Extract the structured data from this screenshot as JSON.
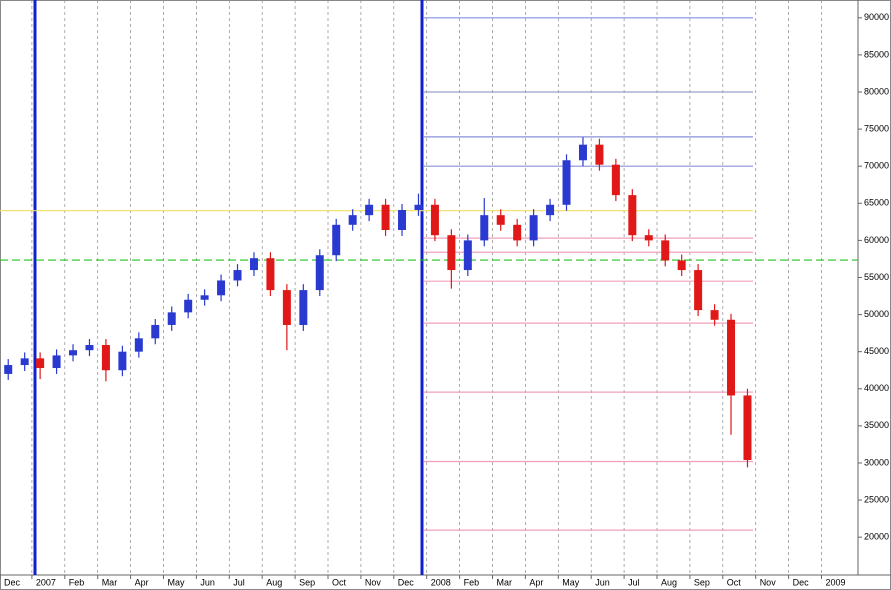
{
  "chart_data": {
    "type": "candlestick",
    "x_labels": [
      "Dec",
      "2007",
      "Feb",
      "Mar",
      "Apr",
      "May",
      "Jun",
      "Jul",
      "Aug",
      "Sep",
      "Oct",
      "Nov",
      "Dec",
      "2008",
      "Feb",
      "Mar",
      "Apr",
      "May",
      "Jun",
      "Jul",
      "Aug",
      "Sep",
      "Oct",
      "Nov",
      "Dec",
      "2009"
    ],
    "open": [
      42000,
      43200,
      44100,
      42800,
      44500,
      45200,
      45900,
      42500,
      45000,
      46800,
      48600,
      50300,
      52000,
      52600,
      54600,
      56000,
      57600,
      53300,
      48600,
      53300,
      58000,
      62100,
      63400,
      64800,
      61400,
      64100,
      64800,
      60700,
      56000,
      60000,
      63400,
      62100,
      60000,
      63400,
      64800,
      70800,
      72900,
      70200,
      66100,
      60700,
      60000,
      57300,
      56000,
      50600,
      49300,
      39100
    ],
    "high": [
      44000,
      44900,
      44900,
      45300,
      46000,
      46700,
      46700,
      45800,
      47600,
      49400,
      51100,
      52800,
      53400,
      55400,
      56800,
      58400,
      58400,
      54100,
      54100,
      58800,
      62900,
      64200,
      65600,
      65600,
      64900,
      66300,
      65600,
      61500,
      60800,
      65700,
      64200,
      62900,
      64200,
      65600,
      71600,
      73900,
      73700,
      71000,
      66900,
      61500,
      60800,
      58100,
      56800,
      51400,
      50100,
      40000
    ],
    "low": [
      41200,
      42400,
      41300,
      42000,
      43700,
      44400,
      41000,
      41700,
      44200,
      46000,
      47800,
      49500,
      51200,
      51800,
      53800,
      55200,
      52500,
      45200,
      47800,
      52500,
      57200,
      61300,
      62600,
      60600,
      60600,
      63300,
      59900,
      53500,
      55200,
      59200,
      61300,
      59200,
      59200,
      62600,
      64000,
      70000,
      69400,
      65300,
      59900,
      59200,
      56500,
      55200,
      49800,
      48500,
      33800,
      29400
    ],
    "close": [
      43200,
      44100,
      42800,
      44500,
      45200,
      45900,
      42500,
      45000,
      46800,
      48600,
      50300,
      52000,
      52600,
      54600,
      56000,
      57600,
      53300,
      48600,
      53300,
      58000,
      62100,
      63400,
      64800,
      61400,
      64100,
      64800,
      60700,
      56000,
      60000,
      63400,
      62100,
      60000,
      63400,
      64800,
      70800,
      72900,
      70200,
      66100,
      60700,
      60000,
      57300,
      56000,
      50600,
      49300,
      39100,
      30400
    ],
    "up_color": "#2a3ad0",
    "down_color": "#e01818",
    "levels": [
      {
        "value": 64000,
        "color": "#f0e060",
        "style": "solid"
      },
      {
        "value": 57350,
        "color": "#20c020",
        "style": "dashed"
      },
      {
        "value": 90000,
        "color": "#8090e8",
        "style": "solid"
      },
      {
        "value": 80000,
        "color": "#9aa0c8",
        "style": "solid"
      },
      {
        "value": 73950,
        "color": "#8a90d8",
        "style": "solid"
      },
      {
        "value": 70000,
        "color": "#8a90d8",
        "style": "solid"
      },
      {
        "value": 60300,
        "color": "#f0a0b8",
        "style": "solid"
      },
      {
        "value": 58400,
        "color": "#f0a0b8",
        "style": "solid"
      },
      {
        "value": 54500,
        "color": "#f0a0b8",
        "style": "solid"
      },
      {
        "value": 48850,
        "color": "#f0a0b8",
        "style": "solid"
      },
      {
        "value": 39550,
        "color": "#f0a0b8",
        "style": "solid"
      },
      {
        "value": 30200,
        "color": "#f0a0b8",
        "style": "solid"
      },
      {
        "value": 20950,
        "color": "#f0a0b8",
        "style": "solid"
      }
    ],
    "ylim": [
      14900,
      92400
    ],
    "yticks": [
      20000,
      25000,
      30000,
      35000,
      40000,
      45000,
      50000,
      55000,
      60000,
      65000,
      70000,
      75000,
      80000,
      85000,
      90000
    ]
  }
}
